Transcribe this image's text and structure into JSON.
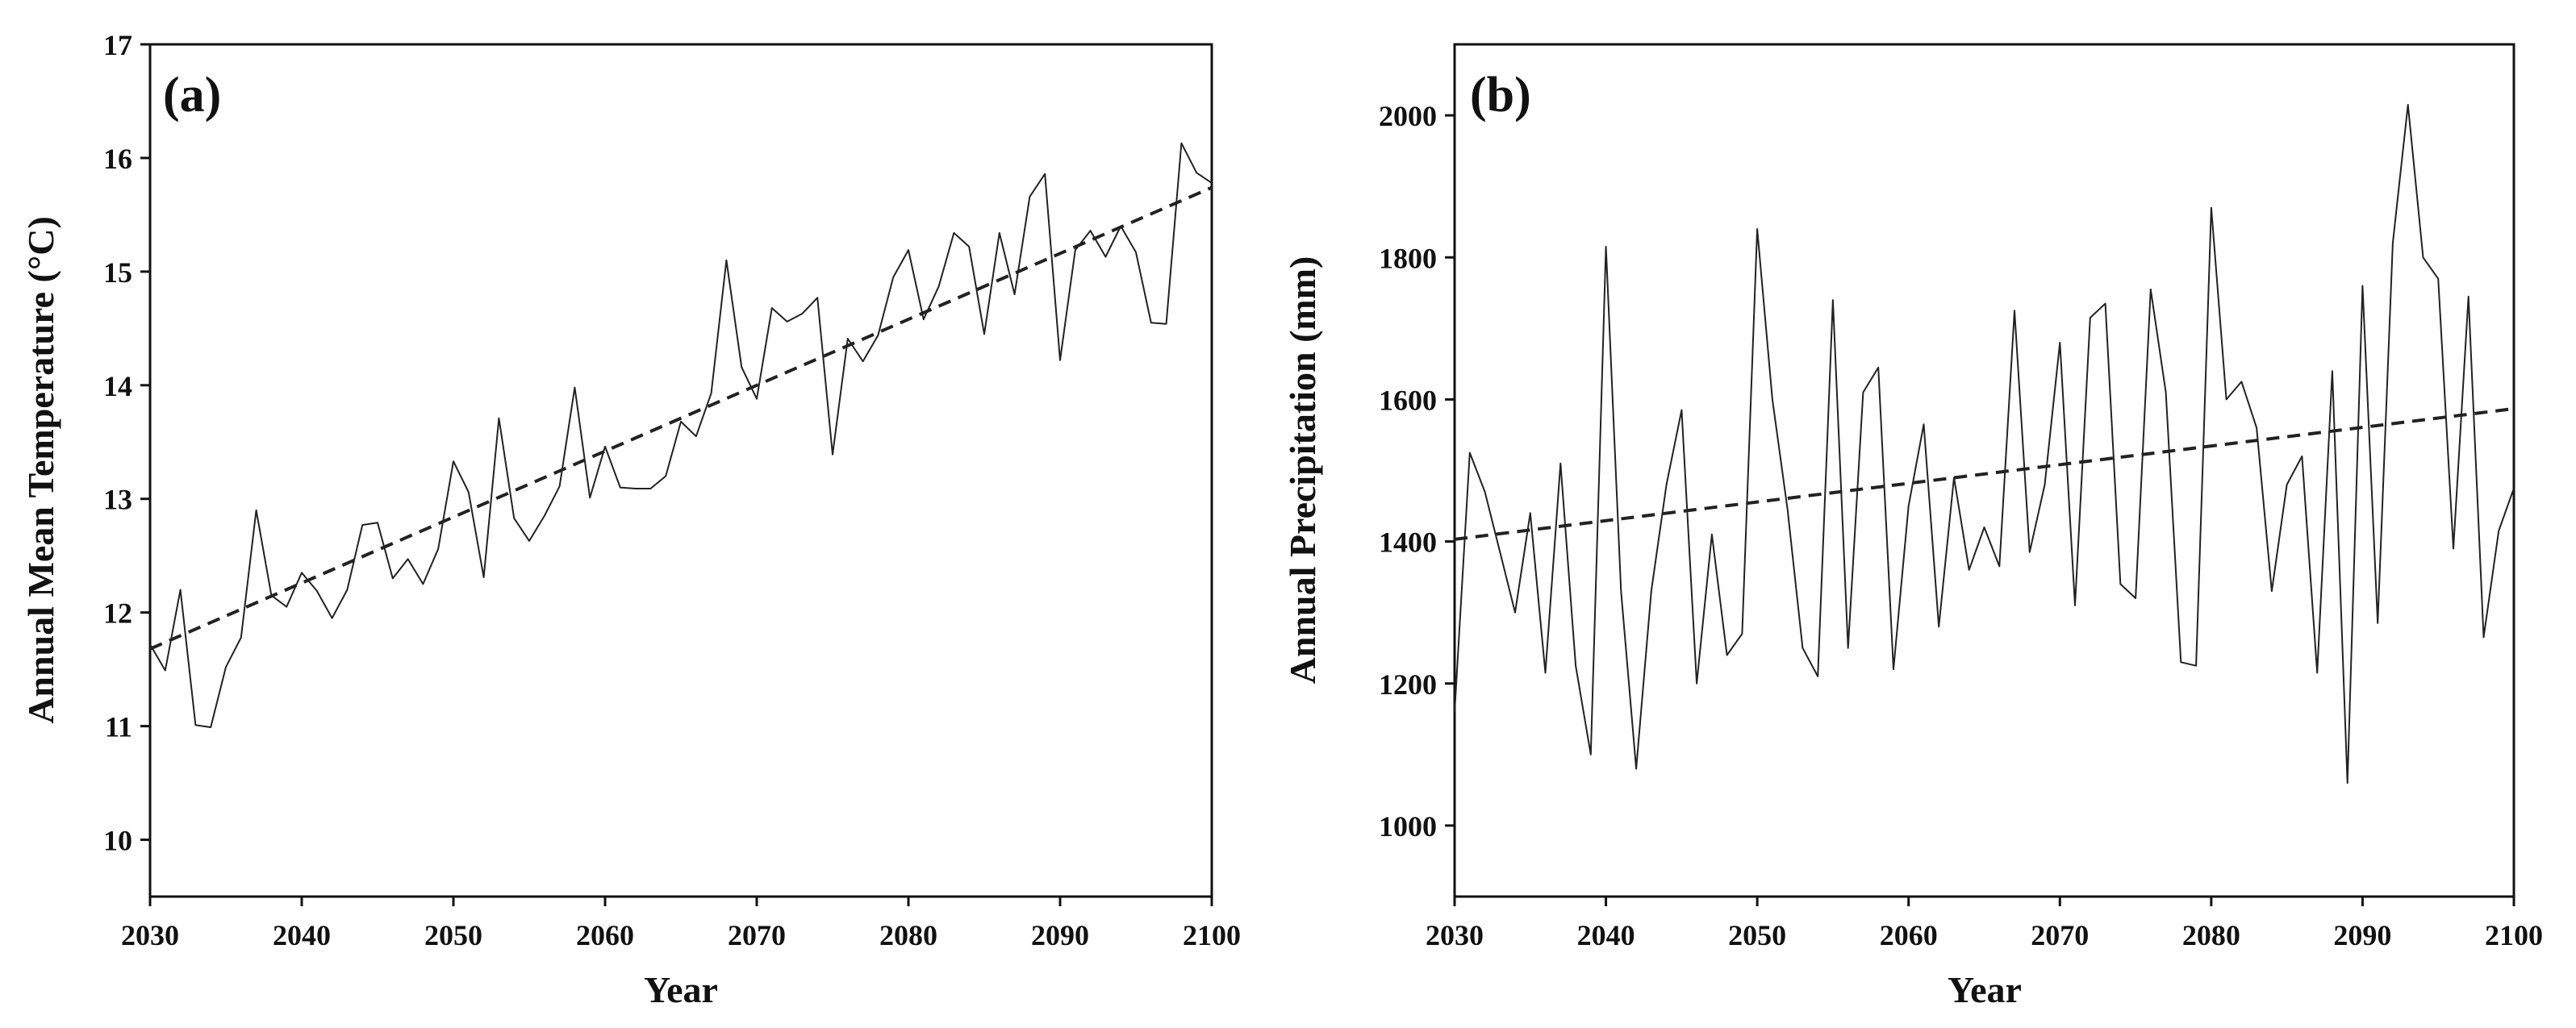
{
  "chart_data": [
    {
      "type": "line",
      "panel_label": "(a)",
      "title": "",
      "xlabel": "Year",
      "ylabel": "Annual Mean Temperature (°C)",
      "xlim": [
        2030,
        2100
      ],
      "ylim": [
        9.5,
        17
      ],
      "xticks": [
        2030,
        2040,
        2050,
        2060,
        2070,
        2080,
        2090,
        2100
      ],
      "yticks": [
        10,
        11,
        12,
        13,
        14,
        15,
        16,
        17
      ],
      "grid": false,
      "legend": "none",
      "series": [
        {
          "name": "Annual mean temperature",
          "style": "solid",
          "x": [
            2030,
            2031,
            2032,
            2033,
            2034,
            2035,
            2036,
            2037,
            2038,
            2039,
            2040,
            2041,
            2042,
            2043,
            2044,
            2045,
            2046,
            2047,
            2048,
            2049,
            2050,
            2051,
            2052,
            2053,
            2054,
            2055,
            2056,
            2057,
            2058,
            2059,
            2060,
            2061,
            2062,
            2063,
            2064,
            2065,
            2066,
            2067,
            2068,
            2069,
            2070,
            2071,
            2072,
            2073,
            2074,
            2075,
            2076,
            2077,
            2078,
            2079,
            2080,
            2081,
            2082,
            2083,
            2084,
            2085,
            2086,
            2087,
            2088,
            2089,
            2090,
            2091,
            2092,
            2093,
            2094,
            2095,
            2096,
            2097,
            2098,
            2099,
            2100
          ],
          "values": [
            11.72,
            11.49,
            12.2,
            11.01,
            10.99,
            11.52,
            11.78,
            12.9,
            12.15,
            12.05,
            12.35,
            12.19,
            11.95,
            12.2,
            12.77,
            12.79,
            12.3,
            12.47,
            12.25,
            12.56,
            13.33,
            13.06,
            12.31,
            13.71,
            12.83,
            12.63,
            12.85,
            13.11,
            13.98,
            13.01,
            13.46,
            13.1,
            13.09,
            13.09,
            13.2,
            13.68,
            13.55,
            13.93,
            15.1,
            14.16,
            13.88,
            14.68,
            14.56,
            14.63,
            14.77,
            13.39,
            14.41,
            14.21,
            14.44,
            14.95,
            15.19,
            14.58,
            14.87,
            15.34,
            15.22,
            14.45,
            15.34,
            14.8,
            15.66,
            15.86,
            14.22,
            15.19,
            15.36,
            15.13,
            15.4,
            15.17,
            14.55,
            14.54,
            16.13,
            15.87,
            15.78
          ]
        },
        {
          "name": "Linear trend",
          "style": "dashed",
          "x": [
            2030,
            2100
          ],
          "values": [
            11.68,
            15.74
          ]
        }
      ]
    },
    {
      "type": "line",
      "panel_label": "(b)",
      "title": "",
      "xlabel": "Year",
      "ylabel": "Annual Precipitation (mm)",
      "xlim": [
        2030,
        2100
      ],
      "ylim": [
        900,
        2100
      ],
      "xticks": [
        2030,
        2040,
        2050,
        2060,
        2070,
        2080,
        2090,
        2100
      ],
      "yticks": [
        1000,
        1200,
        1400,
        1600,
        1800,
        2000
      ],
      "grid": false,
      "legend": "none",
      "series": [
        {
          "name": "Annual precipitation",
          "style": "solid",
          "x": [
            2030,
            2031,
            2032,
            2033,
            2034,
            2035,
            2036,
            2037,
            2038,
            2039,
            2040,
            2041,
            2042,
            2043,
            2044,
            2045,
            2046,
            2047,
            2048,
            2049,
            2050,
            2051,
            2052,
            2053,
            2054,
            2055,
            2056,
            2057,
            2058,
            2059,
            2060,
            2061,
            2062,
            2063,
            2064,
            2065,
            2066,
            2067,
            2068,
            2069,
            2070,
            2071,
            2072,
            2073,
            2074,
            2075,
            2076,
            2077,
            2078,
            2079,
            2080,
            2081,
            2082,
            2083,
            2084,
            2085,
            2086,
            2087,
            2088,
            2089,
            2090,
            2091,
            2092,
            2093,
            2094,
            2095,
            2096,
            2097,
            2098,
            2099,
            2100
          ],
          "values": [
            1160,
            1525,
            1470,
            1385,
            1300,
            1440,
            1215,
            1510,
            1225,
            1100,
            1815,
            1330,
            1080,
            1330,
            1480,
            1585,
            1200,
            1410,
            1240,
            1270,
            1840,
            1600,
            1445,
            1250,
            1210,
            1740,
            1250,
            1610,
            1645,
            1220,
            1450,
            1565,
            1280,
            1490,
            1360,
            1420,
            1365,
            1725,
            1385,
            1480,
            1680,
            1310,
            1715,
            1735,
            1340,
            1320,
            1755,
            1610,
            1230,
            1225,
            1870,
            1600,
            1625,
            1560,
            1330,
            1480,
            1520,
            1215,
            1640,
            1060,
            1760,
            1285,
            1820,
            2015,
            1800,
            1770,
            1390,
            1745,
            1265,
            1415,
            1475
          ]
        },
        {
          "name": "Linear trend",
          "style": "dashed",
          "x": [
            2030,
            2100
          ],
          "values": [
            1403,
            1587
          ]
        }
      ]
    }
  ]
}
